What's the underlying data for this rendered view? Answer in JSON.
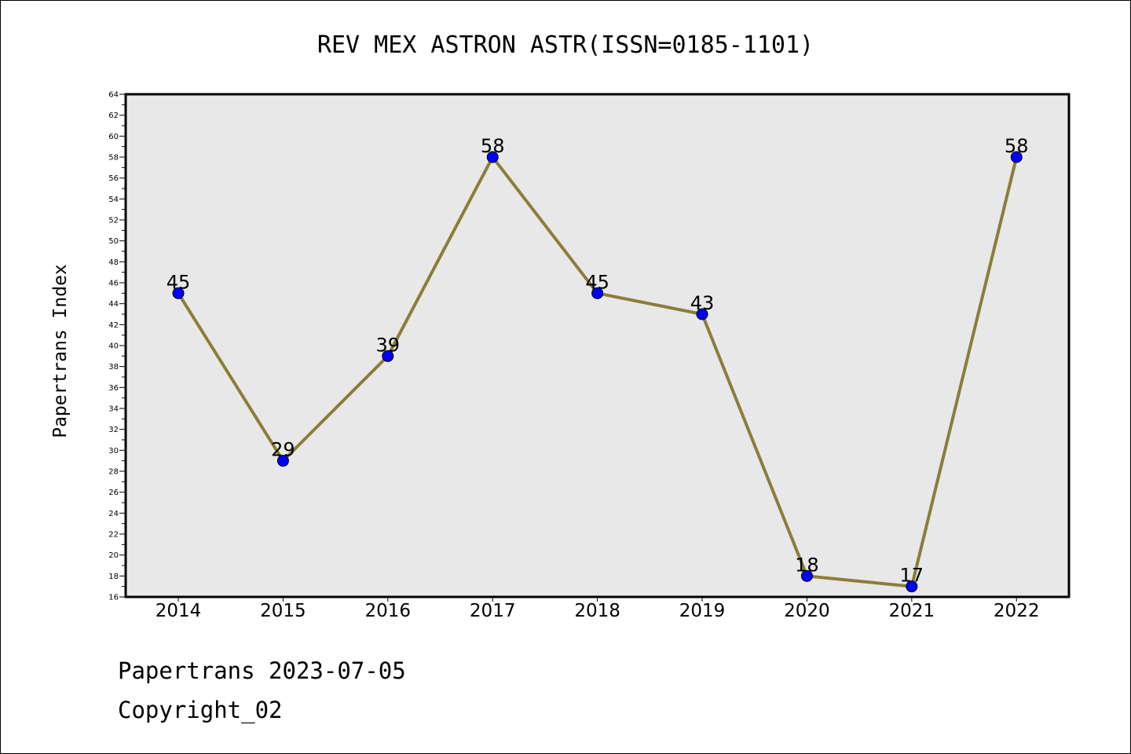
{
  "chart_data": {
    "type": "line",
    "title": "REV MEX ASTRON ASTR(ISSN=0185-1101)",
    "xlabel": "",
    "ylabel": "Papertrans Index",
    "categories": [
      "2014",
      "2015",
      "2016",
      "2017",
      "2018",
      "2019",
      "2020",
      "2021",
      "2022"
    ],
    "values": [
      45,
      29,
      39,
      58,
      45,
      43,
      18,
      17,
      58
    ],
    "ylim": [
      16,
      64
    ],
    "ytick_step": 2,
    "yticks": [
      "16",
      "18",
      "20",
      "22",
      "24",
      "26",
      "28",
      "30",
      "32",
      "34",
      "36",
      "38",
      "40",
      "42",
      "44",
      "46",
      "48",
      "50",
      "52",
      "54",
      "56",
      "58",
      "60",
      "62",
      "64"
    ],
    "grid": false,
    "legend": "none",
    "line_color": "#8b7d3a",
    "marker_color": "#0000ff",
    "plot_background": "#e8e8e8"
  },
  "footer": {
    "line1": "Papertrans 2023-07-05",
    "line2": "Copyright_02"
  }
}
